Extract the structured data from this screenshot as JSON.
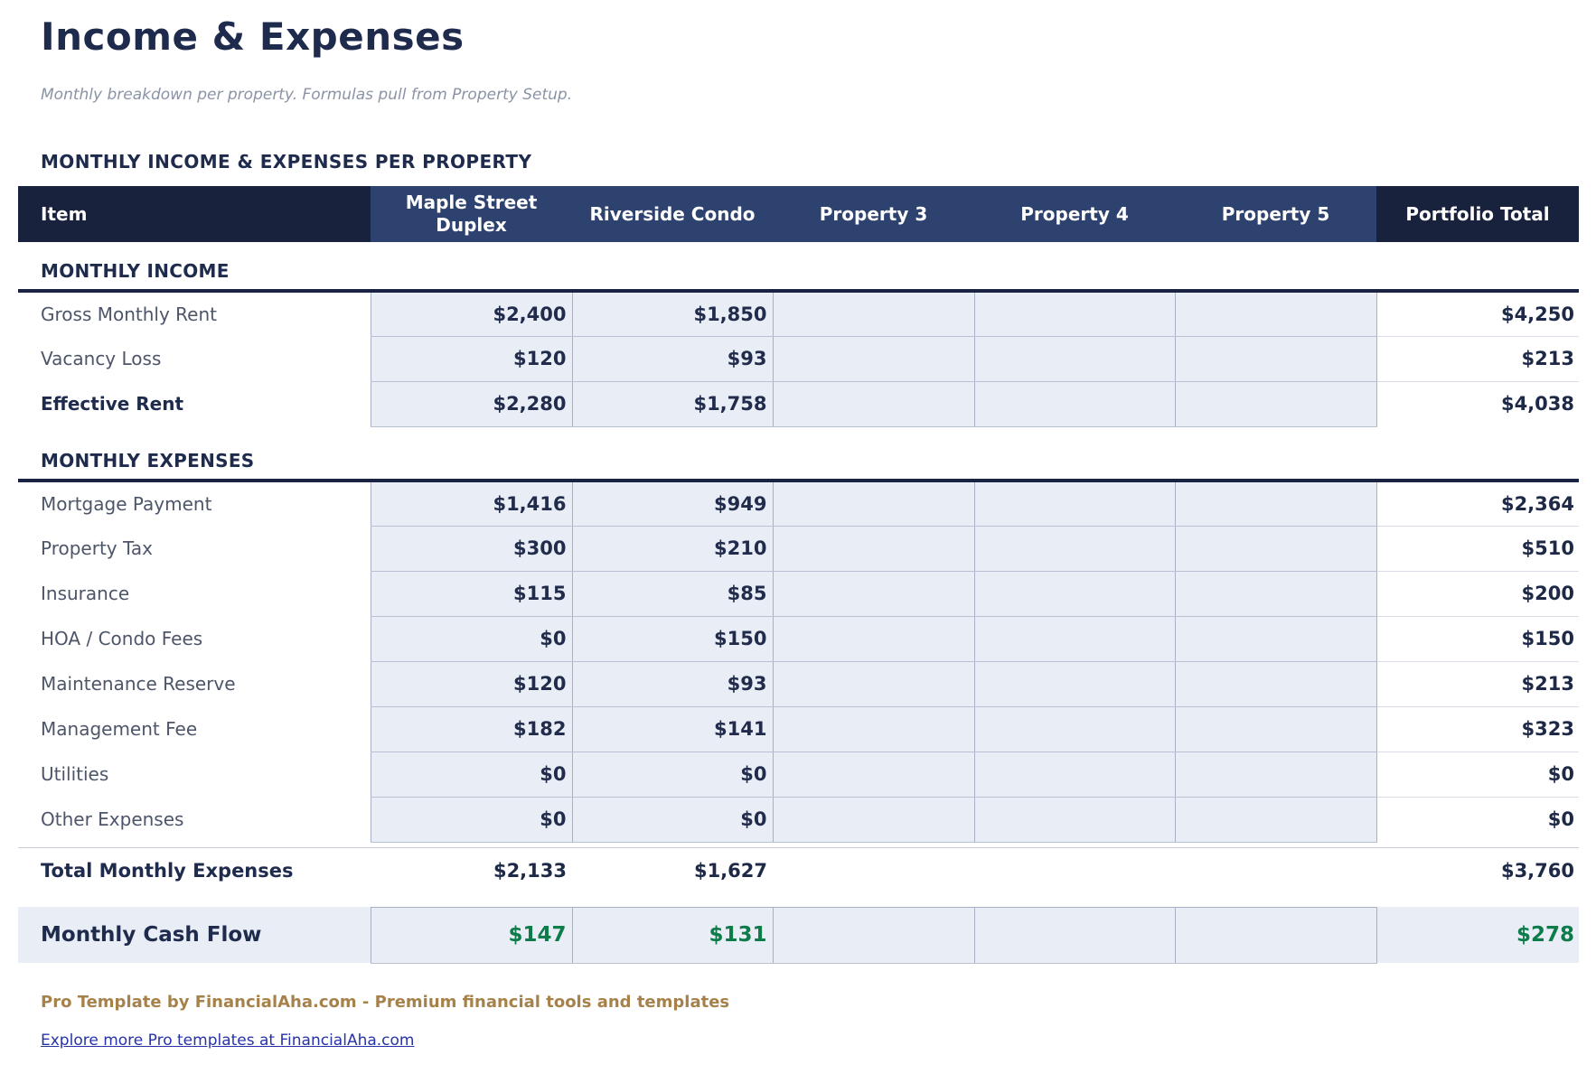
{
  "page": {
    "title": "Income & Expenses",
    "subtitle": "Monthly breakdown per property. Formulas pull from Property Setup.",
    "section_heading": "MONTHLY INCOME & EXPENSES PER PROPERTY"
  },
  "table": {
    "header": {
      "item_label": "Item",
      "property_columns": [
        "Maple Street Duplex",
        "Riverside Condo",
        "Property 3",
        "Property 4",
        "Property 5"
      ],
      "total_label": "Portfolio Total"
    },
    "sections": [
      {
        "label": "MONTHLY INCOME",
        "rows": [
          {
            "label": "Gross Monthly Rent",
            "bold": false,
            "values": [
              "$2,400",
              "$1,850",
              "",
              "",
              ""
            ],
            "total": "$4,250"
          },
          {
            "label": "Vacancy Loss",
            "bold": false,
            "values": [
              "$120",
              "$93",
              "",
              "",
              ""
            ],
            "total": "$213"
          },
          {
            "label": "Effective Rent",
            "bold": true,
            "values": [
              "$2,280",
              "$1,758",
              "",
              "",
              ""
            ],
            "total": "$4,038"
          }
        ]
      },
      {
        "label": "MONTHLY EXPENSES",
        "rows": [
          {
            "label": "Mortgage Payment",
            "bold": false,
            "values": [
              "$1,416",
              "$949",
              "",
              "",
              ""
            ],
            "total": "$2,364"
          },
          {
            "label": "Property Tax",
            "bold": false,
            "values": [
              "$300",
              "$210",
              "",
              "",
              ""
            ],
            "total": "$510"
          },
          {
            "label": "Insurance",
            "bold": false,
            "values": [
              "$115",
              "$85",
              "",
              "",
              ""
            ],
            "total": "$200"
          },
          {
            "label": "HOA / Condo Fees",
            "bold": false,
            "values": [
              "$0",
              "$150",
              "",
              "",
              ""
            ],
            "total": "$150"
          },
          {
            "label": "Maintenance Reserve",
            "bold": false,
            "values": [
              "$120",
              "$93",
              "",
              "",
              ""
            ],
            "total": "$213"
          },
          {
            "label": "Management Fee",
            "bold": false,
            "values": [
              "$182",
              "$141",
              "",
              "",
              ""
            ],
            "total": "$323"
          },
          {
            "label": "Utilities",
            "bold": false,
            "values": [
              "$0",
              "$0",
              "",
              "",
              ""
            ],
            "total": "$0"
          },
          {
            "label": "Other Expenses",
            "bold": false,
            "values": [
              "$0",
              "$0",
              "",
              "",
              ""
            ],
            "total": "$0"
          }
        ]
      }
    ],
    "total_row": {
      "label": "Total Monthly Expenses",
      "values": [
        "$2,133",
        "$1,627",
        "",
        "",
        ""
      ],
      "total": "$3,760"
    },
    "cashflow_row": {
      "label": "Monthly Cash Flow",
      "values": [
        "$147",
        "$131",
        "",
        "",
        ""
      ],
      "total": "$278"
    }
  },
  "footer": {
    "branding": "Pro Template by FinancialAha.com - Premium financial tools and templates",
    "link_text": "Explore more Pro templates at FinancialAha.com"
  },
  "colors": {
    "header_dark": "#18223c",
    "header_blue": "#2e4270",
    "navy_text": "#1e2b4d",
    "label_gray": "#4d5569",
    "cell_fill": "#e9edf6",
    "positive_green": "#0d7c4a",
    "branding_gold": "#a6824a",
    "link_blue": "#2733a8"
  }
}
